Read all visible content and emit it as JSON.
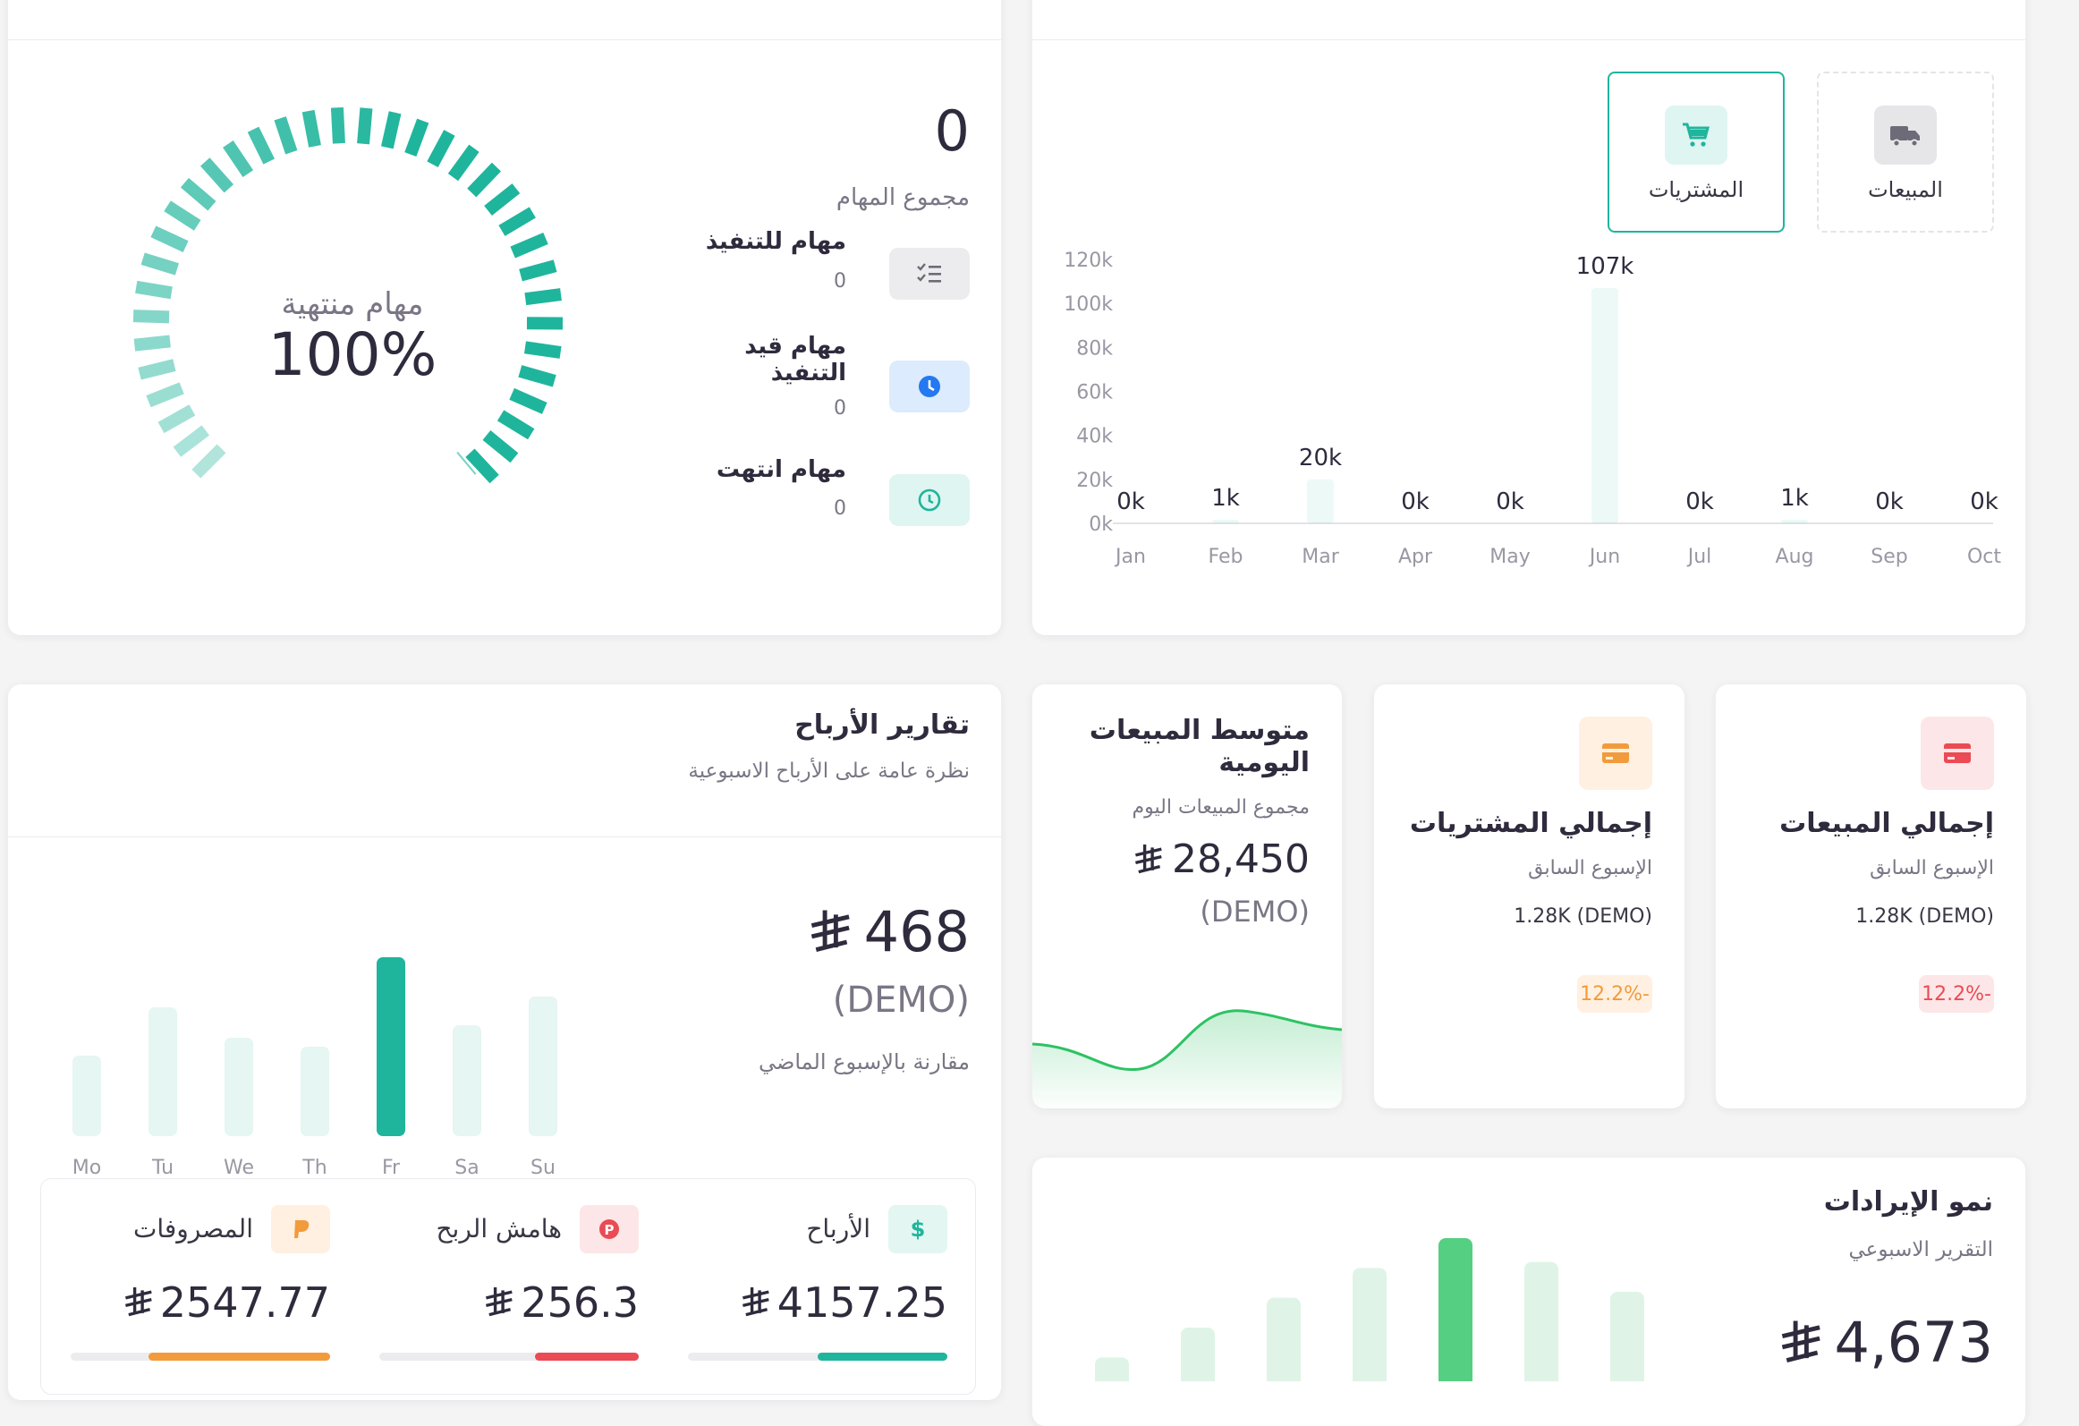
{
  "tasks": {
    "total_value": "0",
    "total_label": "مجموع المهام",
    "gauge_label": "مهام منتهية",
    "gauge_value": "100%",
    "gauge_fraction": 1.0,
    "items": [
      {
        "label": "مهام للتنفيذ",
        "value": "0",
        "icon": "checklist-icon"
      },
      {
        "label": "مهام قيد التنفيذ",
        "value": "0",
        "icon": "clock-icon"
      },
      {
        "label": "مهام انتهت",
        "value": "0",
        "icon": "clock-outline-icon"
      }
    ]
  },
  "monthly": {
    "tabs": [
      {
        "label": "المشتريات",
        "icon": "cart-icon",
        "active": true
      },
      {
        "label": "المبيعات",
        "icon": "truck-icon",
        "active": false
      }
    ],
    "chart_data": {
      "type": "bar",
      "categories": [
        "Jan",
        "Feb",
        "Mar",
        "Apr",
        "May",
        "Jun",
        "Jul",
        "Aug",
        "Sep",
        "Oct"
      ],
      "values": [
        0,
        1,
        20,
        0,
        0,
        107,
        0,
        1,
        0,
        0
      ],
      "data_labels": [
        "0k",
        "1k",
        "20k",
        "0k",
        "0k",
        "107k",
        "0k",
        "1k",
        "0k",
        "0k"
      ],
      "y_ticks": [
        "0k",
        "20k",
        "40k",
        "60k",
        "80k",
        "100k",
        "120k"
      ],
      "ylim": [
        0,
        120
      ],
      "unit": "k"
    }
  },
  "profits": {
    "title": "تقارير الأرباح",
    "subtitle": "نظرة عامة على الأرباح الاسبوعية",
    "amount": "468",
    "currency": "⃁",
    "demo": "(DEMO)",
    "compare": "مقارنة بالإسبوع الماضي",
    "chart_data": {
      "type": "bar",
      "categories": [
        "Mo",
        "Tu",
        "We",
        "Th",
        "Fr",
        "Sa",
        "Su"
      ],
      "values": [
        45,
        72,
        55,
        50,
        100,
        62,
        78
      ],
      "highlight": "Fr"
    },
    "stats": [
      {
        "label": "الأرباح",
        "value": "4157.25",
        "icon": "dollar-icon",
        "color": "#1fb59c",
        "bg": "#e3f6f2",
        "progress": 0.5
      },
      {
        "label": "هامش الربح",
        "value": "256.3",
        "icon": "parking-icon",
        "color": "#ea4b54",
        "bg": "#fde6e7",
        "progress": 0.4
      },
      {
        "label": "المصروفات",
        "value": "2547.77",
        "icon": "paypal-icon",
        "color": "#f29b3c",
        "bg": "#fff0e1",
        "progress": 0.7
      }
    ]
  },
  "daily": {
    "title": "متوسط المبيعات اليومية",
    "subtitle": "مجموع المبيعات اليوم",
    "amount": "28,450",
    "demo": "(DEMO)"
  },
  "purchases_total": {
    "title": "إجمالي المشتريات",
    "subtitle": "الإسبوع السابق",
    "value": "1.28K (DEMO)",
    "change": "12.2%-",
    "color": "#f29b3c",
    "bg": "#fff0e1"
  },
  "sales_total": {
    "title": "إجمالي المبيعات",
    "subtitle": "الإسبوع السابق",
    "value": "1.28K (DEMO)",
    "change": "12.2%-",
    "color": "#ea4b54",
    "bg": "#fde6e7"
  },
  "revenue": {
    "title": "نمو الإيرادات",
    "subtitle": "التقرير الاسبوعي",
    "amount": "4,673",
    "chart_data": {
      "type": "bar",
      "values": [
        20,
        45,
        70,
        95,
        120,
        100,
        75
      ],
      "highlight_index": 4
    }
  }
}
